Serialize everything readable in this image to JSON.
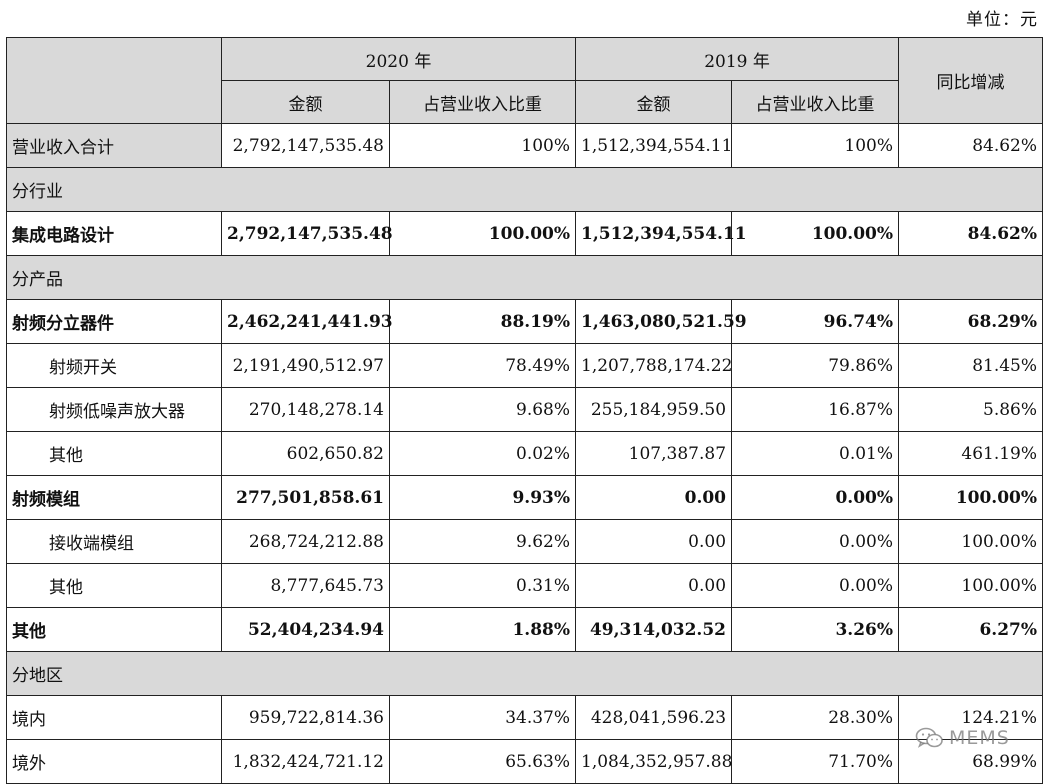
{
  "unit_label": "单位：元",
  "header": {
    "year_2020": "2020 年",
    "year_2019": "2019 年",
    "yoy": "同比增减",
    "amount": "金额",
    "ratio": "占营业收入比重"
  },
  "rows": [
    {
      "label": "营业收入合计",
      "a2020": "2,792,147,535.48",
      "r2020": "100%",
      "a2019": "1,512,394,554.11",
      "r2019": "100%",
      "yoy": "84.62%"
    },
    {
      "section": "分行业"
    },
    {
      "label": "集成电路设计",
      "a2020": "2,792,147,535.48",
      "r2020": "100.00%",
      "a2019": "1,512,394,554.11",
      "r2019": "100.00%",
      "yoy": "84.62%"
    },
    {
      "section": "分产品"
    },
    {
      "label": "射频分立器件",
      "a2020": "2,462,241,441.93",
      "r2020": "88.19%",
      "a2019": "1,463,080,521.59",
      "r2019": "96.74%",
      "yoy": "68.29%"
    },
    {
      "label": "射频开关",
      "a2020": "2,191,490,512.97",
      "r2020": "78.49%",
      "a2019": "1,207,788,174.22",
      "r2019": "79.86%",
      "yoy": "81.45%"
    },
    {
      "label": "射频低噪声放大器",
      "a2020": "270,148,278.14",
      "r2020": "9.68%",
      "a2019": "255,184,959.50",
      "r2019": "16.87%",
      "yoy": "5.86%"
    },
    {
      "label": "其他",
      "a2020": "602,650.82",
      "r2020": "0.02%",
      "a2019": "107,387.87",
      "r2019": "0.01%",
      "yoy": "461.19%"
    },
    {
      "label": "射频模组",
      "a2020": "277,501,858.61",
      "r2020": "9.93%",
      "a2019": "0.00",
      "r2019": "0.00%",
      "yoy": "100.00%"
    },
    {
      "label": "接收端模组",
      "a2020": "268,724,212.88",
      "r2020": "9.62%",
      "a2019": "0.00",
      "r2019": "0.00%",
      "yoy": "100.00%"
    },
    {
      "label": "其他",
      "a2020": "8,777,645.73",
      "r2020": "0.31%",
      "a2019": "0.00",
      "r2019": "0.00%",
      "yoy": "100.00%"
    },
    {
      "label": "其他",
      "a2020": "52,404,234.94",
      "r2020": "1.88%",
      "a2019": "49,314,032.52",
      "r2019": "3.26%",
      "yoy": "6.27%"
    },
    {
      "section": "分地区"
    },
    {
      "label": "境内",
      "a2020": "959,722,814.36",
      "r2020": "34.37%",
      "a2019": "428,041,596.23",
      "r2019": "28.30%",
      "yoy": "124.21%"
    },
    {
      "label": "境外",
      "a2020": "1,832,424,721.12",
      "r2020": "65.63%",
      "a2019": "1,084,352,957.88",
      "r2019": "71.70%",
      "yoy": "68.99%"
    }
  ],
  "watermark": {
    "text": "MEMS",
    "icon": "wechat-icon"
  },
  "colors": {
    "header_bg": "#d9d9d9",
    "border": "#222222"
  }
}
